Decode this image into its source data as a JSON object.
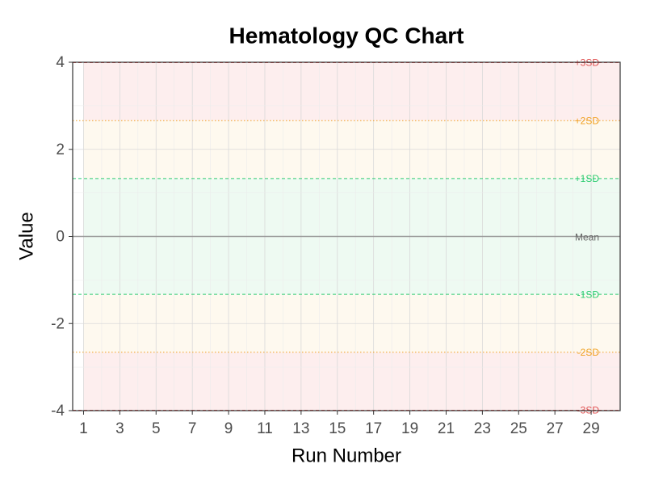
{
  "chart_data": {
    "type": "control",
    "title": "Hematology QC Chart",
    "x_label": "Run Number",
    "y_label": "Value",
    "xlim": [
      0.4,
      30.6
    ],
    "xticks": [
      1,
      3,
      5,
      7,
      9,
      11,
      13,
      15,
      17,
      19,
      21,
      23,
      25,
      27,
      29
    ],
    "ylim": [
      -4,
      4
    ],
    "yticks": [
      -4,
      -2,
      0,
      2,
      4
    ],
    "grid": true,
    "reference_lines": [
      {
        "label": "Mean",
        "value": 0,
        "color": "#999999",
        "style": "solid"
      },
      {
        "label": "+1SD",
        "value": 1.33,
        "color": "#2ecc71",
        "style": "dashed",
        "zone_color": "#eefaf2"
      },
      {
        "label": "-1SD",
        "value": -1.33,
        "color": "#2ecc71",
        "style": "dashed",
        "zone_color": "#eefaf2"
      },
      {
        "label": "+2SD",
        "value": 2.66,
        "color": "#f0a020",
        "style": "dotted",
        "zone_color": "#fef9ef"
      },
      {
        "label": "-2SD",
        "value": -2.66,
        "color": "#f0a020",
        "style": "dotted",
        "zone_color": "#fef9ef"
      },
      {
        "label": "+3SD",
        "value": 3.99,
        "color": "#e05252",
        "style": "dashed",
        "zone_color": "#fdeeee"
      },
      {
        "label": "-3SD",
        "value": -3.99,
        "color": "#e05252",
        "style": "dashed",
        "zone_color": "#fdeeee"
      }
    ]
  }
}
